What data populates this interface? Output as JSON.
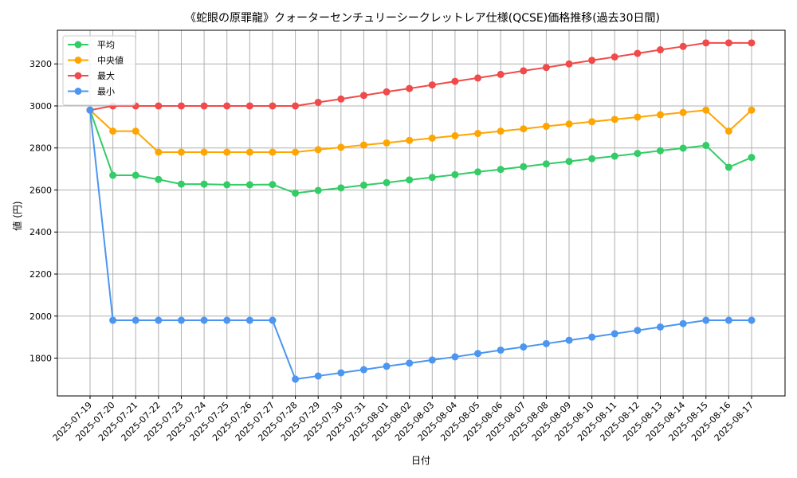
{
  "chart_data": {
    "type": "line",
    "title": "《蛇眼の原罪龍》クォーターセンチュリーシークレットレア仕様(QCSE)価格推移(過去30日間)",
    "xlabel": "日付",
    "ylabel": "値 (円)",
    "ylim": [
      1620,
      3360
    ],
    "yticks": [
      1800,
      2000,
      2200,
      2400,
      2600,
      2800,
      3000,
      3200
    ],
    "grid": true,
    "legend_position": "top-left",
    "categories": [
      "2025-07-19",
      "2025-07-20",
      "2025-07-21",
      "2025-07-22",
      "2025-07-23",
      "2025-07-24",
      "2025-07-25",
      "2025-07-26",
      "2025-07-27",
      "2025-07-28",
      "2025-07-29",
      "2025-07-30",
      "2025-07-31",
      "2025-08-01",
      "2025-08-02",
      "2025-08-03",
      "2025-08-04",
      "2025-08-05",
      "2025-08-06",
      "2025-08-07",
      "2025-08-08",
      "2025-08-09",
      "2025-08-10",
      "2025-08-11",
      "2025-08-12",
      "2025-08-13",
      "2025-08-14",
      "2025-08-15",
      "2025-08-16",
      "2025-08-17"
    ],
    "series": [
      {
        "name": "平均",
        "color": "#33cc66",
        "values": [
          2980,
          2670,
          2670,
          2650,
          2628,
          2628,
          2625,
          2625,
          2626,
          2585,
          2598,
          2610,
          2623,
          2635,
          2648,
          2660,
          2673,
          2686,
          2698,
          2711,
          2724,
          2736,
          2749,
          2761,
          2774,
          2787,
          2799,
          2812,
          2708,
          2755
        ]
      },
      {
        "name": "中央値",
        "color": "#ffa500",
        "values": [
          2980,
          2880,
          2880,
          2780,
          2780,
          2780,
          2780,
          2780,
          2780,
          2780,
          2792,
          2803,
          2814,
          2824,
          2836,
          2847,
          2858,
          2869,
          2880,
          2891,
          2903,
          2914,
          2925,
          2936,
          2947,
          2958,
          2969,
          2980,
          2880,
          2980
        ]
      },
      {
        "name": "最大",
        "color": "#f04a4a",
        "values": [
          2980,
          3000,
          3000,
          3000,
          3000,
          3000,
          3000,
          3000,
          3000,
          3000,
          3017,
          3033,
          3050,
          3067,
          3083,
          3100,
          3117,
          3133,
          3150,
          3167,
          3183,
          3200,
          3217,
          3233,
          3250,
          3267,
          3283,
          3300,
          3300,
          3300
        ]
      },
      {
        "name": "最小",
        "color": "#4b96f0",
        "values": [
          2980,
          1980,
          1980,
          1980,
          1980,
          1980,
          1980,
          1980,
          1980,
          1700,
          1715,
          1730,
          1745,
          1761,
          1776,
          1791,
          1806,
          1822,
          1838,
          1853,
          1869,
          1885,
          1900,
          1916,
          1932,
          1948,
          1964,
          1980,
          1980,
          1980
        ]
      }
    ]
  }
}
